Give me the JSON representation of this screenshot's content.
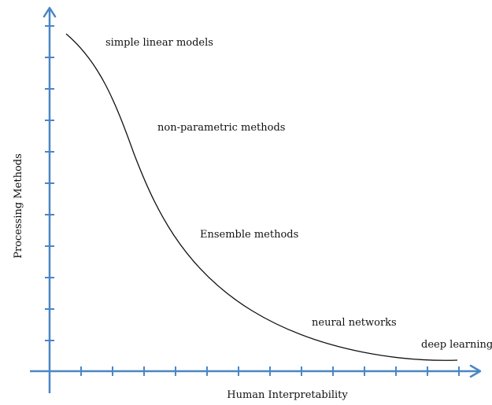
{
  "axes": {
    "x_label": "Human Interpretability",
    "y_label": "Processing Methods",
    "x_tick_count": 13,
    "y_tick_count": 11
  },
  "annotations": [
    "simple linear models",
    "non-parametric methods",
    "Ensemble methods",
    "neural networks",
    "deep learning"
  ],
  "colors": {
    "axis": "#4a86c6",
    "curve": "#111111"
  }
}
